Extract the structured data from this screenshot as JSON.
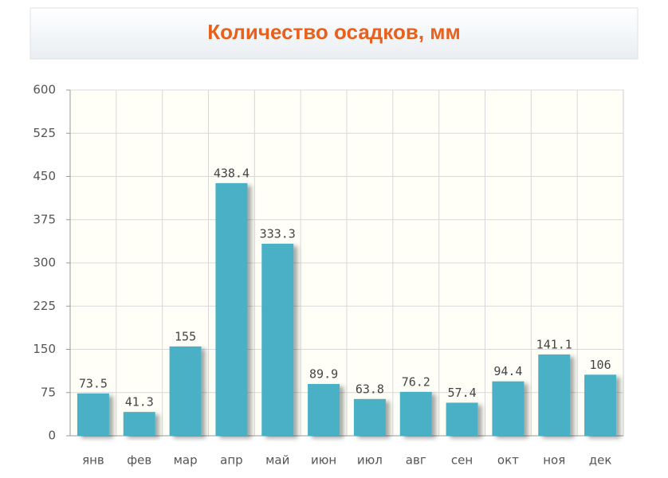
{
  "chart_data": {
    "type": "bar",
    "title": "Количество осадков, мм",
    "categories": [
      "янв",
      "фев",
      "мар",
      "апр",
      "май",
      "июн",
      "июл",
      "авг",
      "сен",
      "окт",
      "ноя",
      "дек"
    ],
    "values": [
      73.5,
      41.3,
      155,
      438.4,
      333.3,
      89.9,
      63.8,
      76.2,
      57.4,
      94.4,
      141.1,
      106
    ],
    "color": "#4ab0c6",
    "ylim": [
      0,
      600
    ],
    "yticks": [
      0,
      75,
      150,
      225,
      300,
      375,
      450,
      525,
      600
    ],
    "grid": true
  }
}
